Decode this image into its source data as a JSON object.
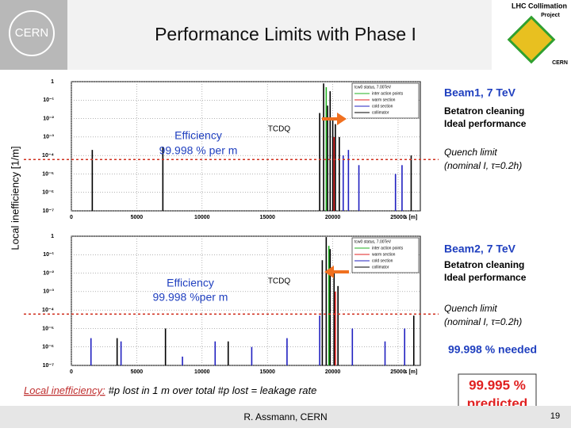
{
  "slide": {
    "title": "Performance Limits with Phase I",
    "logo_left": "CERN",
    "logo_right_title": "LHC Collimation",
    "logo_right_sub": "Project",
    "logo_right_bottom": "CERN",
    "y_axis_label": "Local inefficiency [1/m]",
    "beam1": {
      "heading": "Beam1, 7 TeV",
      "line1": "Betatron cleaning",
      "line2": "Ideal performance",
      "quench1": "Quench limit",
      "quench2": "(nominal I, τ=0.2h)"
    },
    "beam2": {
      "heading": "Beam2, 7 TeV",
      "line1": "Betatron cleaning",
      "line2": "Ideal performance",
      "quench1": "Quench limit",
      "quench2": "(nominal I, τ=0.2h)"
    },
    "needed": "99.998 % needed",
    "predicted1": "99.995 %",
    "predicted2": "predicted",
    "footer_term": "Local inefficiency:",
    "footer_definition": "#p lost in 1 m over total #p lost = leakage rate",
    "author": "R. Assmann, CERN",
    "page": "19"
  },
  "chart_data": [
    {
      "type": "bar",
      "x_label": "s [m]",
      "log_y": true,
      "grid": true,
      "xlim": [
        0,
        26700
      ],
      "xticks": [
        0,
        5000,
        10000,
        15000,
        20000,
        25000
      ],
      "ylim": [
        1e-07,
        1
      ],
      "yticks": [
        1,
        {
          "value": 0.1,
          "label": "10⁻¹"
        },
        {
          "value": 0.01,
          "label": "10⁻²"
        },
        {
          "value": 0.001,
          "label": "10⁻³"
        },
        {
          "value": 0.0001,
          "label": "10⁻⁴"
        },
        {
          "value": 1e-05,
          "label": "10⁻⁵"
        },
        {
          "value": 1e-06,
          "label": "10⁻⁶"
        },
        {
          "value": 1e-07,
          "label": "10⁻⁷"
        }
      ],
      "threshold": 6e-05,
      "threshold_color": "#d03020",
      "legend_title": "tcw0 status, 7.00TeV",
      "annotations": [
        "Efficiency",
        "99.998 % per m",
        "TCDQ"
      ],
      "series": [
        {
          "name": "inter action points",
          "color": "#20b020",
          "x": [
            19500
          ],
          "values": [
            0.5
          ]
        },
        {
          "name": "warm section",
          "color": "#e02020",
          "x": [
            20100
          ],
          "values": [
            0.001
          ]
        },
        {
          "name": "cold section",
          "color": "#2020c0",
          "x": [
            20800,
            21200,
            22000,
            24800,
            25300
          ],
          "values": [
            0.0001,
            0.0002,
            3e-05,
            1e-05,
            3e-05
          ]
        },
        {
          "name": "collimator",
          "color": "#000000",
          "x": [
            1600,
            7000,
            19000,
            19300,
            19600,
            19800,
            20000,
            20200,
            20500,
            26000
          ],
          "values": [
            0.0002,
            0.0003,
            0.02,
            0.8,
            0.05,
            0.3,
            0.01,
            0.005,
            0.001,
            0.0001
          ]
        }
      ]
    },
    {
      "type": "bar",
      "x_label": "s [m]",
      "log_y": true,
      "grid": true,
      "xlim": [
        0,
        26700
      ],
      "xticks": [
        0,
        5000,
        10000,
        15000,
        20000,
        25000
      ],
      "ylim": [
        1e-07,
        1
      ],
      "yticks": [
        1,
        {
          "value": 0.1,
          "label": "10⁻¹"
        },
        {
          "value": 0.01,
          "label": "10⁻²"
        },
        {
          "value": 0.001,
          "label": "10⁻³"
        },
        {
          "value": 0.0001,
          "label": "10⁻⁴"
        },
        {
          "value": 1e-05,
          "label": "10⁻⁵"
        },
        {
          "value": 1e-06,
          "label": "10⁻⁶"
        },
        {
          "value": 1e-07,
          "label": "10⁻⁷"
        }
      ],
      "threshold": 6e-05,
      "threshold_color": "#d03020",
      "legend_title": "tcw0 status, 7.00TeV",
      "annotations": [
        "Efficiency",
        "99.998 %per m",
        "TCDQ"
      ],
      "series": [
        {
          "name": "inter action points",
          "color": "#20b020",
          "x": [
            19700
          ],
          "values": [
            0.3
          ]
        },
        {
          "name": "warm section",
          "color": "#e02020",
          "x": [
            20200
          ],
          "values": [
            0.001
          ]
        },
        {
          "name": "cold section",
          "color": "#2020c0",
          "x": [
            1500,
            3800,
            8500,
            11000,
            13800,
            16500,
            19000,
            21500,
            24000,
            25500
          ],
          "values": [
            3e-06,
            2e-06,
            3e-07,
            2e-06,
            1e-06,
            3e-06,
            5e-05,
            1e-05,
            2e-06,
            1e-05
          ]
        },
        {
          "name": "collimator",
          "color": "#000000",
          "x": [
            3500,
            7200,
            12000,
            19200,
            19500,
            19800,
            20100,
            20400,
            26200
          ],
          "values": [
            3e-06,
            1e-05,
            2e-06,
            0.05,
            0.9,
            0.2,
            0.01,
            0.002,
            5e-05
          ]
        }
      ]
    }
  ]
}
